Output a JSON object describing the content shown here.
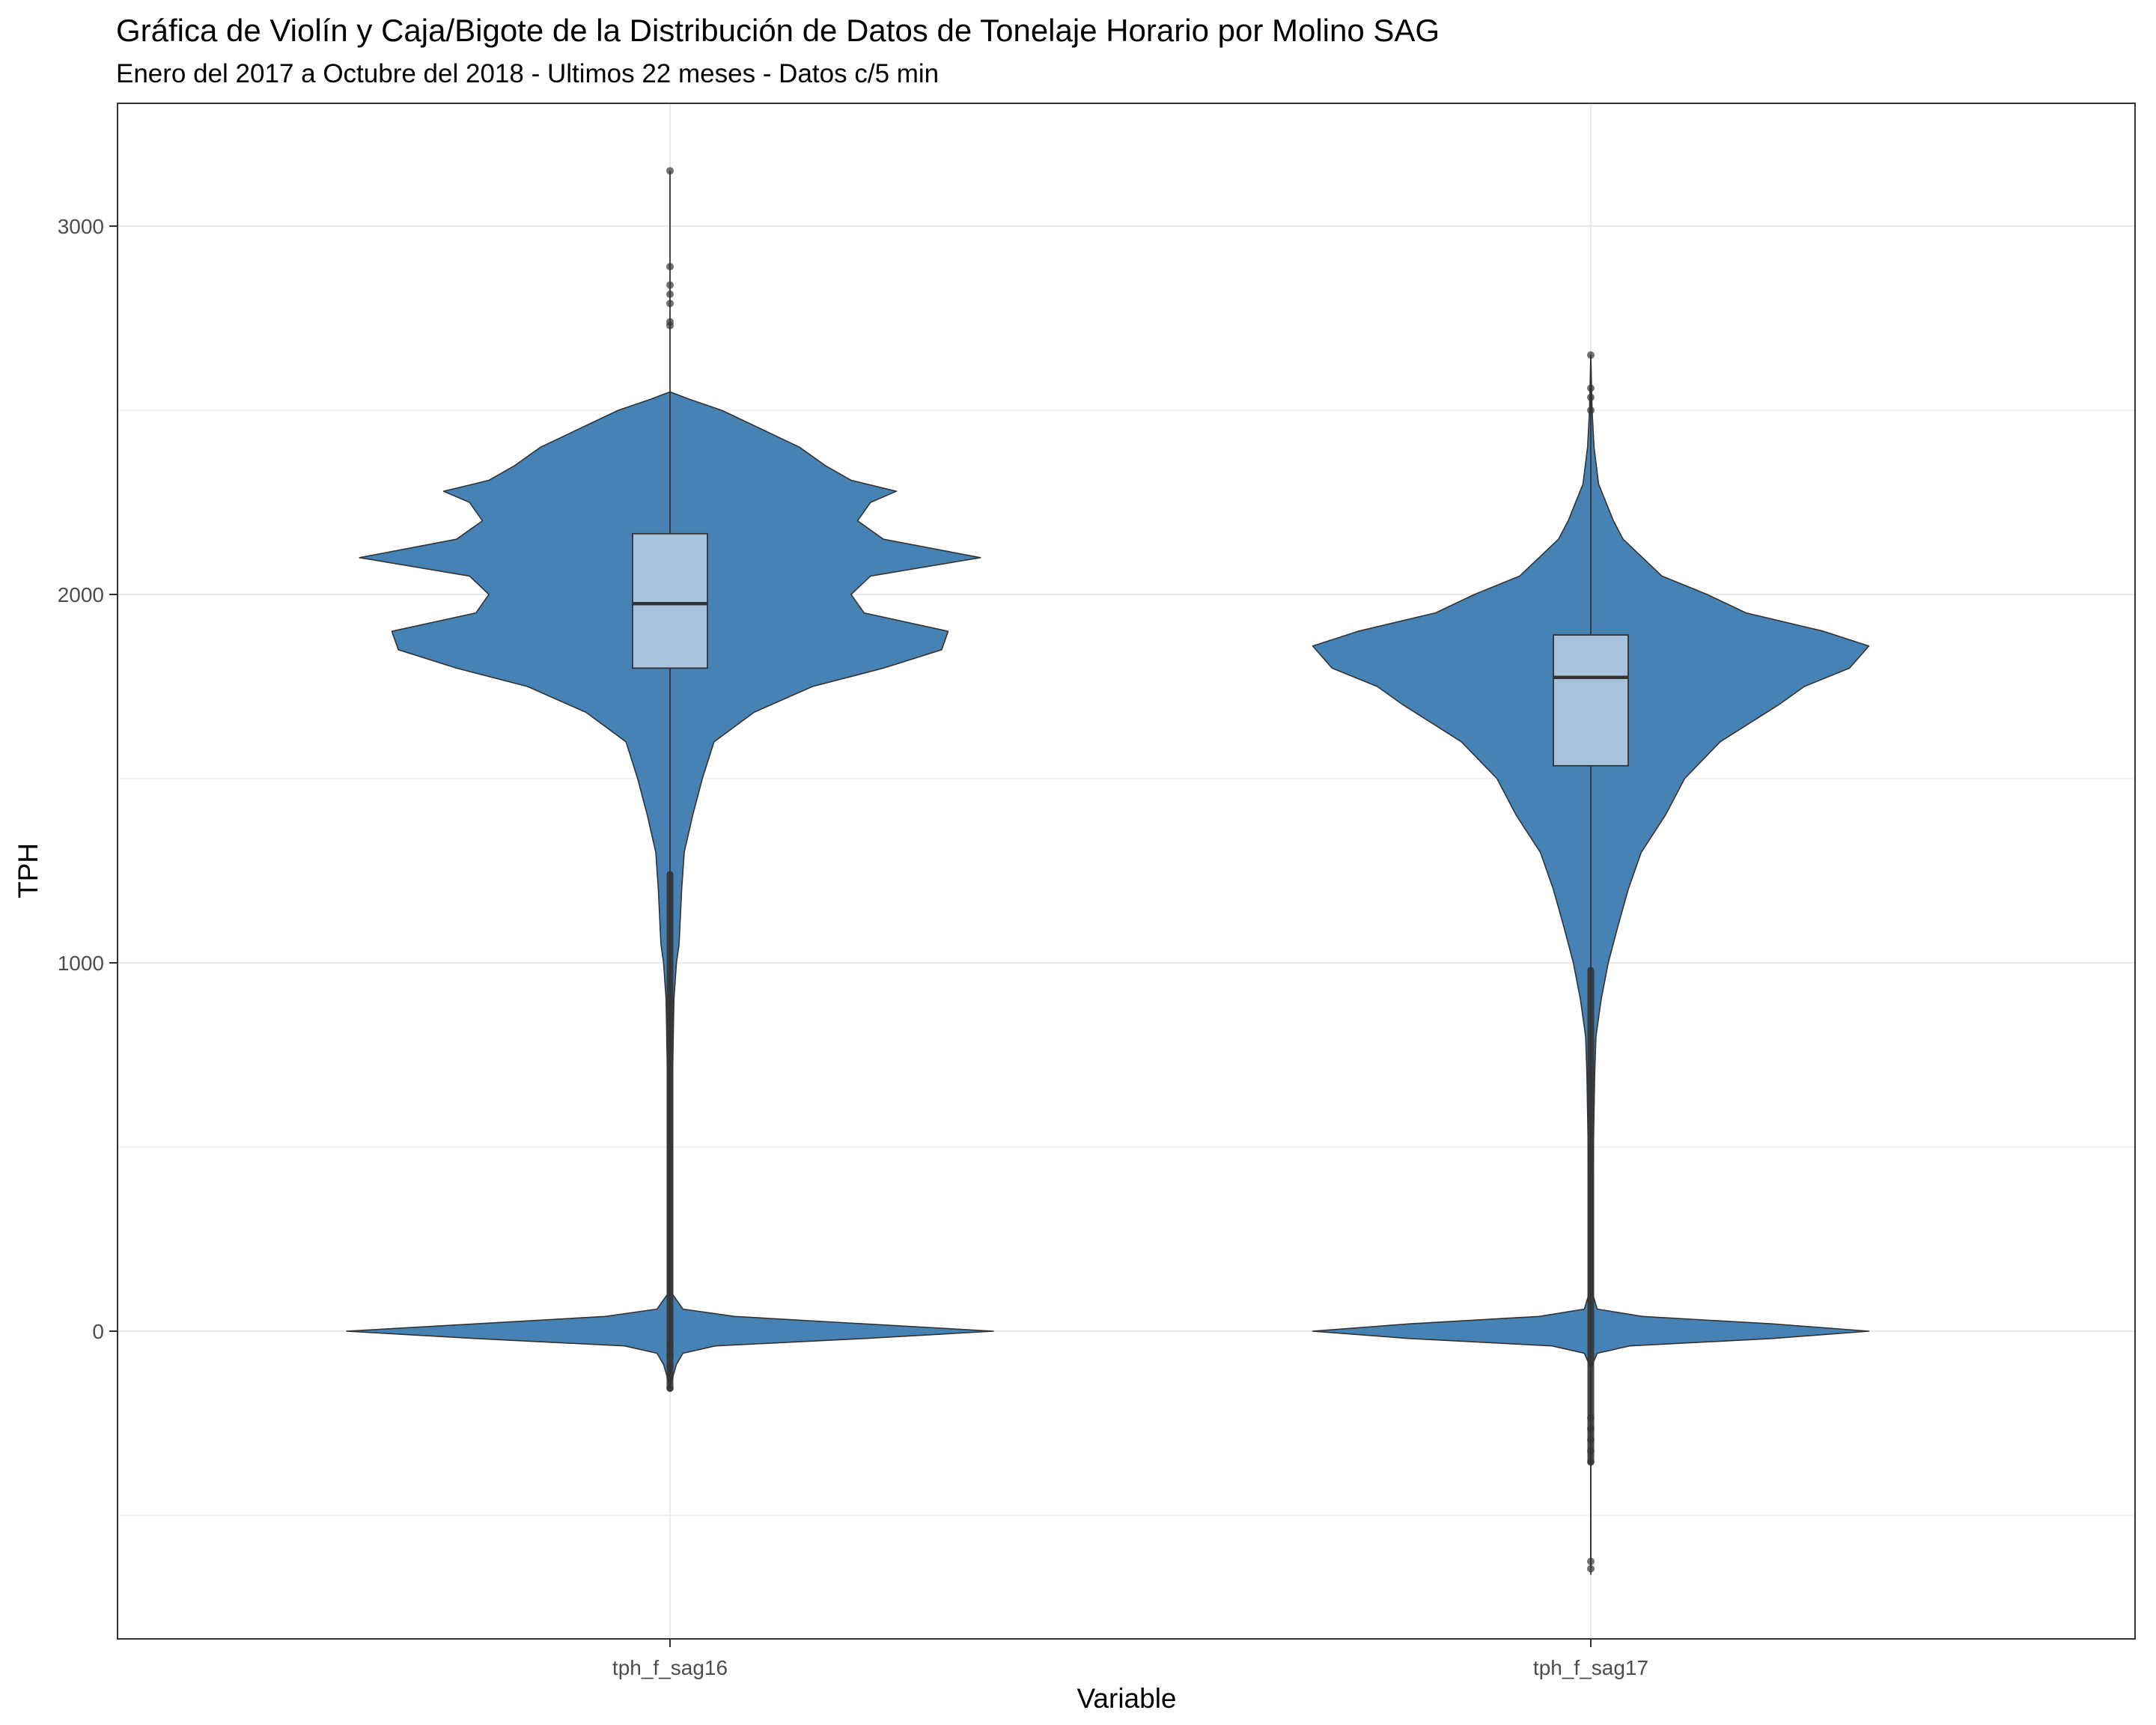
{
  "chart_data": {
    "type": "violin",
    "title": "Gráfica de Violín y Caja/Bigote de la Distribución de Datos de Tonelaje Horario por Molino SAG",
    "subtitle": "Enero del 2017 a Octubre del 2018 - Ultimos 22 meses - Datos c/5 min",
    "xlabel": "Variable",
    "ylabel": "TPH",
    "ylim": [
      -830,
      3300
    ],
    "y_ticks": [
      0,
      1000,
      2000,
      3000
    ],
    "y_minor_ticks": [
      -500,
      500,
      1500,
      2500
    ],
    "categories": [
      "tph_f_sag16",
      "tph_f_sag17"
    ],
    "grid": true,
    "colors": {
      "violin_fill": "#4682B4",
      "box_fill": "#A7C3DC",
      "outline": "#333333",
      "grid": "#EBEBEB",
      "panel_border": "#333333"
    },
    "series": [
      {
        "category": "tph_f_sag16",
        "box": {
          "q1": 1800,
          "median": 1975,
          "q3": 2165,
          "whisker_low": 1240,
          "whisker_high": 3150
        },
        "outliers_high": [
          3150,
          2890,
          2840,
          2815,
          2790,
          2740,
          2730
        ],
        "outliers_low_range": [
          -155,
          1240
        ],
        "density": [
          [
            -150,
            0.0
          ],
          [
            -90,
            0.01
          ],
          [
            -60,
            0.02
          ],
          [
            -40,
            0.07
          ],
          [
            -20,
            0.3
          ],
          [
            0,
            0.5
          ],
          [
            20,
            0.3
          ],
          [
            40,
            0.1
          ],
          [
            60,
            0.02
          ],
          [
            100,
            0.004
          ],
          [
            400,
            0.004
          ],
          [
            700,
            0.004
          ],
          [
            900,
            0.006
          ],
          [
            1000,
            0.01
          ],
          [
            1050,
            0.014
          ],
          [
            1200,
            0.018
          ],
          [
            1300,
            0.022
          ],
          [
            1400,
            0.035
          ],
          [
            1500,
            0.05
          ],
          [
            1600,
            0.068
          ],
          [
            1680,
            0.13
          ],
          [
            1750,
            0.22
          ],
          [
            1800,
            0.33
          ],
          [
            1850,
            0.42
          ],
          [
            1900,
            0.43
          ],
          [
            1950,
            0.3
          ],
          [
            2000,
            0.28
          ],
          [
            2050,
            0.31
          ],
          [
            2100,
            0.48
          ],
          [
            2150,
            0.33
          ],
          [
            2200,
            0.29
          ],
          [
            2250,
            0.31
          ],
          [
            2280,
            0.35
          ],
          [
            2310,
            0.28
          ],
          [
            2350,
            0.24
          ],
          [
            2400,
            0.2
          ],
          [
            2450,
            0.14
          ],
          [
            2500,
            0.08
          ],
          [
            2530,
            0.03
          ],
          [
            2550,
            0.0
          ]
        ]
      },
      {
        "category": "tph_f_sag17",
        "box": {
          "q1": 1535,
          "median": 1775,
          "q3": 1890,
          "whisker_low": 980,
          "whisker_high": 2420
        },
        "outliers_high": [
          2650,
          2560,
          2535,
          2500
        ],
        "outliers_low_range": [
          -355,
          980
        ],
        "outliers_extreme_low": [
          -625,
          -645
        ],
        "density": [
          [
            -660,
            0.0
          ],
          [
            -100,
            0.0
          ],
          [
            -60,
            0.01
          ],
          [
            -40,
            0.06
          ],
          [
            -20,
            0.28
          ],
          [
            0,
            0.43
          ],
          [
            20,
            0.28
          ],
          [
            40,
            0.08
          ],
          [
            60,
            0.01
          ],
          [
            100,
            0.003
          ],
          [
            400,
            0.003
          ],
          [
            700,
            0.006
          ],
          [
            800,
            0.008
          ],
          [
            900,
            0.016
          ],
          [
            1000,
            0.027
          ],
          [
            1100,
            0.042
          ],
          [
            1200,
            0.058
          ],
          [
            1300,
            0.078
          ],
          [
            1400,
            0.115
          ],
          [
            1500,
            0.145
          ],
          [
            1600,
            0.2
          ],
          [
            1700,
            0.29
          ],
          [
            1750,
            0.33
          ],
          [
            1800,
            0.4
          ],
          [
            1860,
            0.43
          ],
          [
            1900,
            0.36
          ],
          [
            1950,
            0.24
          ],
          [
            2000,
            0.18
          ],
          [
            2050,
            0.11
          ],
          [
            2100,
            0.08
          ],
          [
            2150,
            0.05
          ],
          [
            2200,
            0.035
          ],
          [
            2300,
            0.012
          ],
          [
            2400,
            0.005
          ],
          [
            2500,
            0.002
          ],
          [
            2650,
            0.0
          ]
        ]
      }
    ]
  }
}
